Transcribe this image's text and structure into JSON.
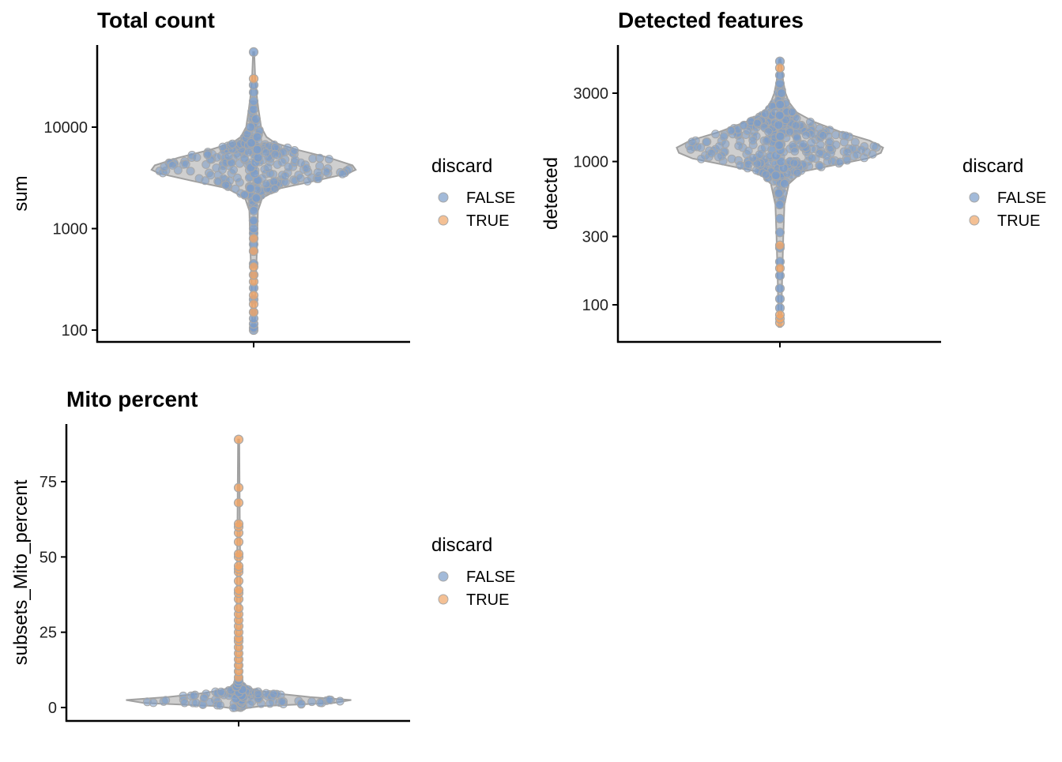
{
  "legend": {
    "title": "discard",
    "items": [
      {
        "label": "FALSE",
        "color": "#7b9cc9"
      },
      {
        "label": "TRUE",
        "color": "#f0a567"
      }
    ]
  },
  "colors": {
    "false_point": "#7b9cc9",
    "true_point": "#f0a567",
    "point_outline": "#a8a8a8",
    "violin_outline": "#a0a0a0",
    "axis": "#000000"
  },
  "chart_data": [
    {
      "type": "scatter",
      "subtype": "violin-beeswarm",
      "title": "Total count",
      "xlabel": "",
      "ylabel": "sum",
      "yscale": "log10",
      "ylim": [
        90,
        60000
      ],
      "yticks": [
        100,
        1000,
        10000
      ],
      "ytick_labels": [
        "100",
        "1000",
        "10000"
      ],
      "grid": false,
      "legend_position": "right",
      "density": [
        [
          100,
          0.01
        ],
        [
          150,
          0.015
        ],
        [
          300,
          0.02
        ],
        [
          600,
          0.03
        ],
        [
          1000,
          0.035
        ],
        [
          1500,
          0.04
        ],
        [
          2000,
          0.08
        ],
        [
          2500,
          0.25
        ],
        [
          3000,
          0.6
        ],
        [
          3500,
          0.88
        ],
        [
          3800,
          0.95
        ],
        [
          4200,
          0.92
        ],
        [
          5000,
          0.7
        ],
        [
          6000,
          0.4
        ],
        [
          7000,
          0.2
        ],
        [
          8000,
          0.12
        ],
        [
          10000,
          0.07
        ],
        [
          15000,
          0.045
        ],
        [
          20000,
          0.03
        ],
        [
          30000,
          0.015
        ],
        [
          55000,
          0.005
        ]
      ],
      "series": [
        {
          "name": "FALSE",
          "values": [
            100,
            105,
            115,
            130,
            150,
            200,
            260,
            350,
            450,
            600,
            700,
            800,
            900,
            1000,
            1200,
            1500,
            2000,
            2500,
            3000,
            3500,
            4000,
            4500,
            5000,
            6000,
            7000,
            8000,
            10000,
            12000,
            15000,
            18000,
            22000,
            26000,
            55000
          ]
        },
        {
          "name": "TRUE",
          "values": [
            150,
            180,
            220,
            300,
            350,
            420,
            600,
            800,
            30000
          ]
        }
      ]
    },
    {
      "type": "scatter",
      "subtype": "violin-beeswarm",
      "title": "Detected features",
      "xlabel": "",
      "ylabel": "detected",
      "yscale": "log10",
      "ylim": [
        70,
        5500
      ],
      "yticks": [
        100,
        300,
        1000,
        3000
      ],
      "ytick_labels": [
        "100",
        "300",
        "1000",
        "3000"
      ],
      "grid": false,
      "legend_position": "right",
      "density": [
        [
          70,
          0.01
        ],
        [
          100,
          0.015
        ],
        [
          150,
          0.02
        ],
        [
          300,
          0.03
        ],
        [
          500,
          0.04
        ],
        [
          700,
          0.08
        ],
        [
          850,
          0.2
        ],
        [
          950,
          0.5
        ],
        [
          1050,
          0.78
        ],
        [
          1150,
          0.9
        ],
        [
          1250,
          0.92
        ],
        [
          1400,
          0.8
        ],
        [
          1600,
          0.55
        ],
        [
          1900,
          0.3
        ],
        [
          2200,
          0.15
        ],
        [
          2600,
          0.08
        ],
        [
          3000,
          0.05
        ],
        [
          3600,
          0.03
        ],
        [
          4500,
          0.015
        ],
        [
          5200,
          0.005
        ]
      ],
      "series": [
        {
          "name": "FALSE",
          "values": [
            95,
            110,
            130,
            160,
            200,
            250,
            320,
            400,
            500,
            600,
            700,
            800,
            900,
            1000,
            1100,
            1200,
            1300,
            1500,
            1800,
            2100,
            2500,
            3000,
            3500,
            4000,
            5000
          ]
        },
        {
          "name": "TRUE",
          "values": [
            75,
            80,
            85,
            180,
            260,
            4500
          ]
        }
      ]
    },
    {
      "type": "scatter",
      "subtype": "violin-beeswarm",
      "title": "Mito percent",
      "xlabel": "",
      "ylabel": "subsets_Mito_percent",
      "yscale": "linear",
      "ylim": [
        -3,
        93
      ],
      "yticks": [
        0,
        25,
        50,
        75
      ],
      "ytick_labels": [
        "0",
        "25",
        "50",
        "75"
      ],
      "grid": false,
      "legend_position": "right",
      "density": [
        [
          -0.5,
          0.01
        ],
        [
          0.5,
          0.2
        ],
        [
          1.5,
          0.8
        ],
        [
          2.5,
          0.95
        ],
        [
          3.5,
          0.6
        ],
        [
          4.5,
          0.35
        ],
        [
          5.5,
          0.18
        ],
        [
          6.5,
          0.08
        ],
        [
          8,
          0.04
        ],
        [
          10,
          0.025
        ],
        [
          20,
          0.02
        ],
        [
          40,
          0.015
        ],
        [
          60,
          0.01
        ],
        [
          89,
          0.005
        ]
      ],
      "series": [
        {
          "name": "FALSE",
          "values": [
            0.5,
            1,
            1.5,
            2,
            2.5,
            3,
            3.5,
            4,
            5,
            6,
            7,
            8,
            9
          ]
        },
        {
          "name": "TRUE",
          "values": [
            10,
            12,
            14,
            16,
            18,
            20,
            22,
            23,
            25,
            27,
            29,
            31,
            33,
            36,
            38,
            39,
            42,
            45,
            46,
            47,
            50,
            51,
            55,
            58,
            60,
            61,
            68,
            73,
            89
          ]
        }
      ]
    }
  ]
}
